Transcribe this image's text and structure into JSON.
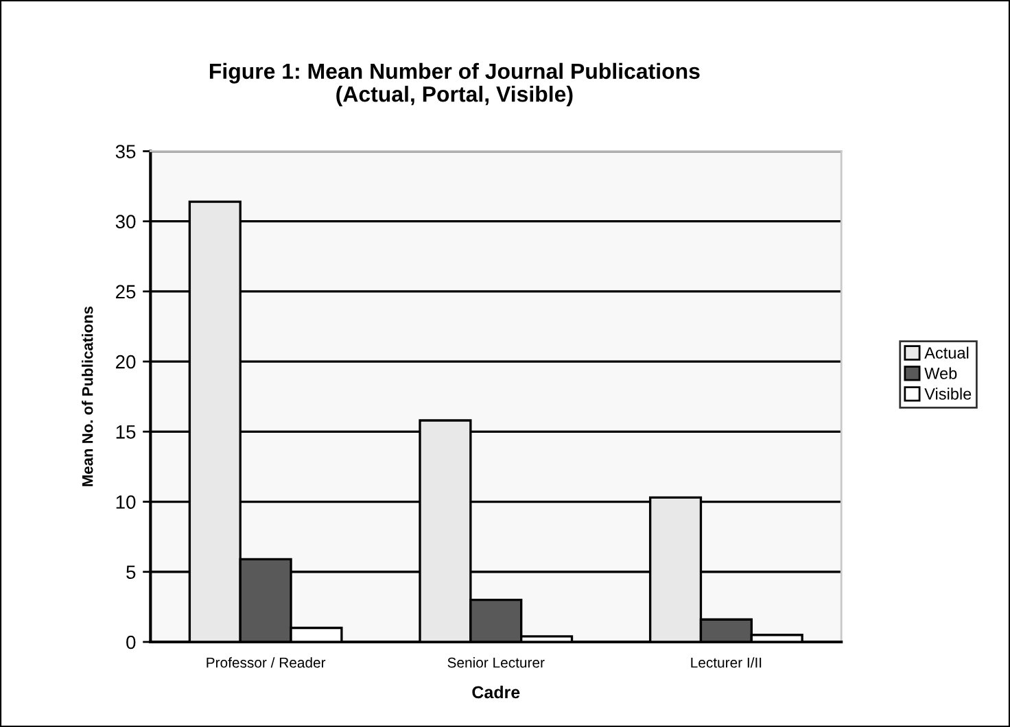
{
  "chart_data": {
    "type": "bar",
    "title": "Figure 1: Mean Number of Journal Publications\n(Actual, Portal, Visible)",
    "xlabel": "Cadre",
    "ylabel": "Mean No. of Publications",
    "categories": [
      "Professor / Reader",
      "Senior Lecturer",
      "Lecturer I/II"
    ],
    "series": [
      {
        "name": "Actual",
        "color": "#e8e8e8",
        "values": [
          31.4,
          15.8,
          10.3
        ]
      },
      {
        "name": "Web",
        "color": "#595959",
        "values": [
          5.9,
          3.0,
          1.6
        ]
      },
      {
        "name": "Visible",
        "color": "#ffffff",
        "values": [
          1.0,
          0.4,
          0.5
        ]
      }
    ],
    "ylim": [
      0,
      35
    ],
    "yticks": [
      0,
      5,
      10,
      15,
      20,
      25,
      30,
      35
    ],
    "grid": "y",
    "legend": "right"
  }
}
